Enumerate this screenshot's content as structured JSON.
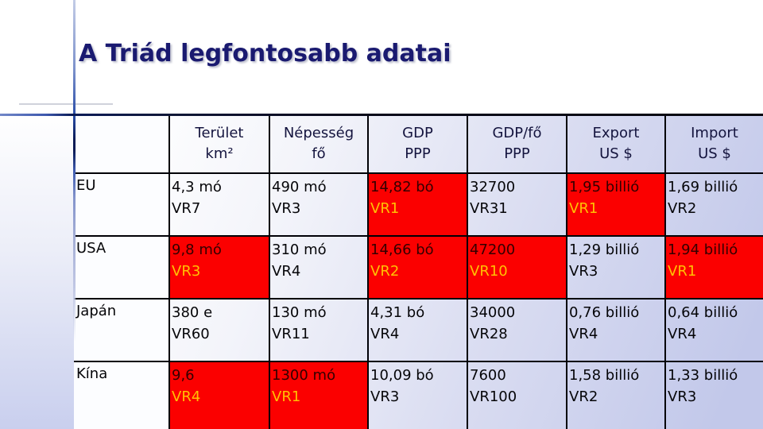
{
  "slide": {
    "title": "A Triád legfontosabb adatai"
  },
  "table": {
    "columns": [
      {
        "key": "rowlabel",
        "line1": "",
        "line2": ""
      },
      {
        "key": "terulet",
        "line1": "Terület",
        "line2": "km²"
      },
      {
        "key": "nepesseg",
        "line1": "Népesség",
        "line2": "fő"
      },
      {
        "key": "gdp",
        "line1": "GDP",
        "line2": "PPP"
      },
      {
        "key": "gdp-fo",
        "line1": "GDP/fő",
        "line2": "PPP"
      },
      {
        "key": "export",
        "line1": "Export",
        "line2": "US $"
      },
      {
        "key": "import",
        "line1": "Import",
        "line2": "US $"
      }
    ],
    "rows": [
      {
        "label": "EU",
        "cells": [
          {
            "value": "4,3 mó",
            "rank": "VR7",
            "highlight": false
          },
          {
            "value": "490 mó",
            "rank": "VR3",
            "highlight": false
          },
          {
            "value": "14,82 bó",
            "rank": "VR1",
            "highlight": true
          },
          {
            "value": "32700",
            "rank": "VR31",
            "highlight": false
          },
          {
            "value": "1,95 billió",
            "rank": "VR1",
            "highlight": true
          },
          {
            "value": "1,69 billió",
            "rank": "VR2",
            "highlight": false
          }
        ]
      },
      {
        "label": "USA",
        "cells": [
          {
            "value": "9,8 mó",
            "rank": "VR3",
            "highlight": true
          },
          {
            "value": "310 mó",
            "rank": "VR4",
            "highlight": false
          },
          {
            "value": "14,66 bó",
            "rank": "VR2",
            "highlight": true
          },
          {
            "value": "47200",
            "rank": "VR10",
            "highlight": true
          },
          {
            "value": "1,29 billió",
            "rank": "VR3",
            "highlight": false
          },
          {
            "value": "1,94 billió",
            "rank": "VR1",
            "highlight": true
          }
        ]
      },
      {
        "label": "Japán",
        "cells": [
          {
            "value": "380 e",
            "rank": "VR60",
            "highlight": false
          },
          {
            "value": "130 mó",
            "rank": "VR11",
            "highlight": false
          },
          {
            "value": "4,31 bó",
            "rank": "VR4",
            "highlight": false
          },
          {
            "value": "34000",
            "rank": "VR28",
            "highlight": false
          },
          {
            "value": "0,76 billió",
            "rank": "VR4",
            "highlight": false
          },
          {
            "value": "0,64 billió",
            "rank": "VR4",
            "highlight": false
          }
        ]
      },
      {
        "label": "Kína",
        "cells": [
          {
            "value": "9,6",
            "rank": "VR4",
            "highlight": true
          },
          {
            "value": "1300 mó",
            "rank": "VR1",
            "highlight": true
          },
          {
            "value": "10,09 bó",
            "rank": "VR3",
            "highlight": false
          },
          {
            "value": "7600",
            "rank": "VR100",
            "highlight": false
          },
          {
            "value": "1,58 billió",
            "rank": "VR2",
            "highlight": false
          },
          {
            "value": "1,33 billió",
            "rank": "VR3",
            "highlight": false
          }
        ]
      }
    ]
  },
  "colors": {
    "title_text": "#1a1a70",
    "highlight_cell_bg": "#fb0000",
    "rank_on_highlight": "#ffc103",
    "value_on_highlight": "#330000",
    "table_gradient_start": "#ffffff",
    "table_gradient_end": "#c2c8ea",
    "decor_line_blue": "#0a1b55",
    "border_black": "#000006"
  }
}
